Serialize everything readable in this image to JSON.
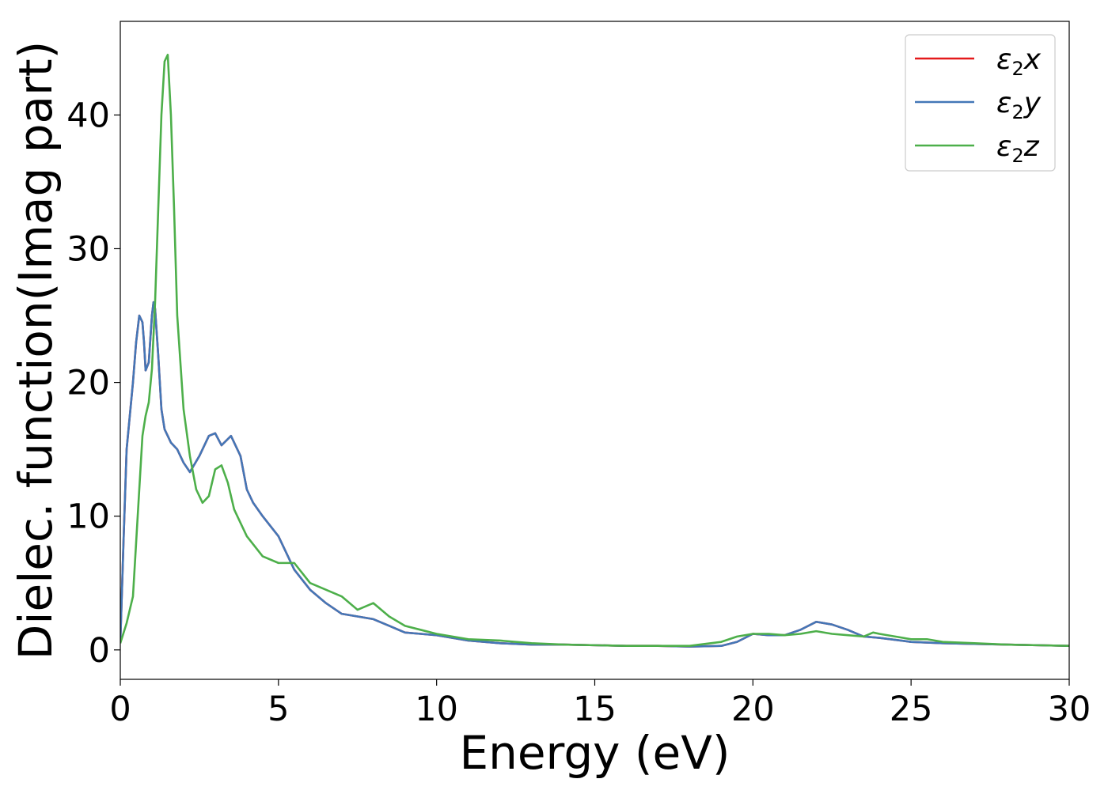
{
  "chart_data": {
    "type": "line",
    "title": "",
    "xlabel": "Energy (eV)",
    "ylabel": "Dielec. function(Imag part)",
    "xlim": [
      0,
      30
    ],
    "ylim": [
      -2.2,
      47
    ],
    "xticks": [
      0,
      5,
      10,
      15,
      20,
      25,
      30
    ],
    "yticks": [
      0,
      10,
      20,
      30,
      40
    ],
    "grid": false,
    "legend": {
      "position": "top-right",
      "entries": [
        "ε2x",
        "ε2y",
        "ε2z"
      ]
    },
    "series": [
      {
        "name": "ε2x",
        "color": "#e41a1c",
        "x": [
          0,
          0.1,
          0.2,
          0.3,
          0.4,
          0.5,
          0.6,
          0.7,
          0.75,
          0.8,
          0.9,
          1.0,
          1.05,
          1.1,
          1.2,
          1.3,
          1.4,
          1.5,
          1.6,
          1.8,
          2.0,
          2.2,
          2.5,
          2.8,
          3.0,
          3.2,
          3.5,
          3.8,
          4.0,
          4.2,
          4.5,
          5.0,
          5.5,
          6.0,
          6.5,
          7.0,
          7.5,
          8.0,
          8.5,
          9.0,
          9.5,
          10,
          11,
          12,
          13,
          14,
          15,
          16,
          17,
          18,
          19,
          19.5,
          20,
          20.5,
          21,
          21.5,
          22,
          22.5,
          23,
          23.5,
          24,
          25,
          26,
          27,
          28,
          29,
          30
        ],
        "values": [
          0.5,
          8,
          15,
          17.5,
          20,
          23,
          25,
          24.5,
          23,
          20.9,
          21.5,
          25,
          26,
          25.5,
          22,
          18,
          16.5,
          16,
          15.5,
          15,
          14,
          13.3,
          14.5,
          16,
          16.2,
          15.3,
          16,
          14.5,
          12,
          11,
          10,
          8.5,
          6,
          4.5,
          3.5,
          2.7,
          2.5,
          2.3,
          1.8,
          1.3,
          1.2,
          1.1,
          0.7,
          0.5,
          0.4,
          0.4,
          0.35,
          0.3,
          0.3,
          0.25,
          0.3,
          0.6,
          1.2,
          1.1,
          1.1,
          1.5,
          2.1,
          1.9,
          1.5,
          1.0,
          0.9,
          0.6,
          0.5,
          0.45,
          0.4,
          0.35,
          0.3
        ]
      },
      {
        "name": "ε2y",
        "color": "#4377b7",
        "x": [
          0,
          0.1,
          0.2,
          0.3,
          0.4,
          0.5,
          0.6,
          0.7,
          0.75,
          0.8,
          0.9,
          1.0,
          1.05,
          1.1,
          1.2,
          1.3,
          1.4,
          1.5,
          1.6,
          1.8,
          2.0,
          2.2,
          2.5,
          2.8,
          3.0,
          3.2,
          3.5,
          3.8,
          4.0,
          4.2,
          4.5,
          5.0,
          5.5,
          6.0,
          6.5,
          7.0,
          7.5,
          8.0,
          8.5,
          9.0,
          9.5,
          10,
          11,
          12,
          13,
          14,
          15,
          16,
          17,
          18,
          19,
          19.5,
          20,
          20.5,
          21,
          21.5,
          22,
          22.5,
          23,
          23.5,
          24,
          25,
          26,
          27,
          28,
          29,
          30
        ],
        "values": [
          0.5,
          8,
          15,
          17.5,
          20,
          23,
          25,
          24.5,
          23,
          20.9,
          21.5,
          25,
          26,
          25.5,
          22,
          18,
          16.5,
          16,
          15.5,
          15,
          14,
          13.3,
          14.5,
          16,
          16.2,
          15.3,
          16,
          14.5,
          12,
          11,
          10,
          8.5,
          6,
          4.5,
          3.5,
          2.7,
          2.5,
          2.3,
          1.8,
          1.3,
          1.2,
          1.1,
          0.7,
          0.5,
          0.4,
          0.4,
          0.35,
          0.3,
          0.3,
          0.25,
          0.3,
          0.6,
          1.2,
          1.1,
          1.1,
          1.5,
          2.1,
          1.9,
          1.5,
          1.0,
          0.9,
          0.6,
          0.5,
          0.45,
          0.4,
          0.35,
          0.3
        ]
      },
      {
        "name": "ε2z",
        "color": "#4daf4a",
        "x": [
          0,
          0.2,
          0.4,
          0.5,
          0.6,
          0.7,
          0.8,
          0.9,
          1.0,
          1.1,
          1.2,
          1.3,
          1.4,
          1.5,
          1.6,
          1.7,
          1.8,
          2.0,
          2.2,
          2.4,
          2.6,
          2.8,
          3.0,
          3.2,
          3.4,
          3.6,
          3.8,
          4.0,
          4.5,
          5.0,
          5.5,
          6.0,
          6.5,
          7.0,
          7.5,
          8.0,
          8.5,
          9.0,
          9.5,
          10,
          11,
          12,
          13,
          14,
          15,
          16,
          17,
          18,
          19,
          19.5,
          20,
          20.5,
          21,
          21.5,
          22,
          22.5,
          23,
          23.5,
          23.8,
          24,
          24.5,
          25,
          25.5,
          26,
          27,
          28,
          29,
          30
        ],
        "values": [
          0.5,
          2,
          4,
          8,
          12,
          16,
          17.5,
          18.5,
          21,
          26,
          33,
          40,
          44,
          44.5,
          40,
          33,
          25,
          18,
          14.5,
          12,
          11,
          11.5,
          13.5,
          13.8,
          12.5,
          10.5,
          9.5,
          8.5,
          7,
          6.5,
          6.5,
          5,
          4.5,
          4,
          3,
          3.5,
          2.5,
          1.8,
          1.5,
          1.2,
          0.8,
          0.7,
          0.5,
          0.4,
          0.35,
          0.3,
          0.3,
          0.3,
          0.6,
          1.0,
          1.2,
          1.2,
          1.1,
          1.2,
          1.4,
          1.2,
          1.1,
          1.0,
          1.3,
          1.2,
          1.0,
          0.8,
          0.8,
          0.6,
          0.5,
          0.4,
          0.35,
          0.3
        ]
      }
    ]
  }
}
